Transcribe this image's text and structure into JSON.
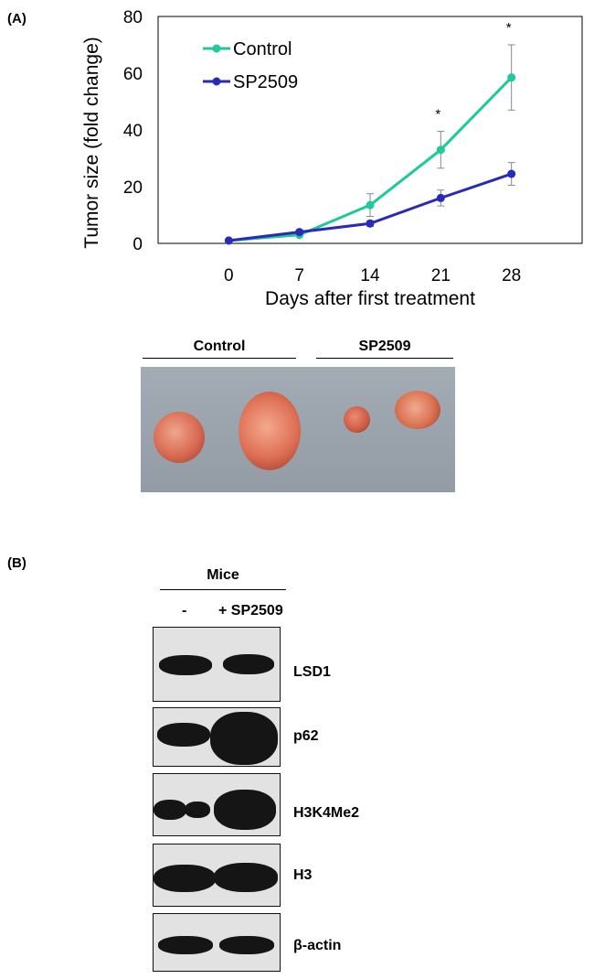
{
  "panel_a_label": "(A)",
  "panel_b_label": "(B)",
  "chart_data": {
    "type": "line",
    "title": "",
    "xlabel": "Days after first treatment",
    "ylabel": "Tumor size (fold change)",
    "x": [
      0,
      7,
      14,
      21,
      28
    ],
    "xlim": [
      -7,
      35
    ],
    "ylim": [
      0,
      80
    ],
    "yticks": [
      0,
      20,
      40,
      60,
      80
    ],
    "grid": false,
    "legend_position": "top-left",
    "series": [
      {
        "name": "Control",
        "color": "#1ec99a",
        "values": [
          1,
          3,
          13.5,
          33,
          58.5
        ],
        "errors": [
          0,
          0.5,
          4,
          6.5,
          11.5
        ]
      },
      {
        "name": "SP2509",
        "color": "#2a2ab8",
        "values": [
          1,
          4,
          7,
          16,
          24.5
        ],
        "errors": [
          0,
          0.5,
          1,
          2.8,
          4
        ]
      }
    ],
    "annotations": [
      {
        "x": 21,
        "text": "*"
      },
      {
        "x": 28,
        "text": "*"
      }
    ]
  },
  "photo": {
    "groups": [
      "Control",
      "SP2509"
    ]
  },
  "western": {
    "group_label": "Mice",
    "lanes": [
      "-",
      "+ SP2509"
    ],
    "blots": [
      "LSD1",
      "p62",
      "H3K4Me2",
      "H3",
      "β-actin"
    ]
  }
}
